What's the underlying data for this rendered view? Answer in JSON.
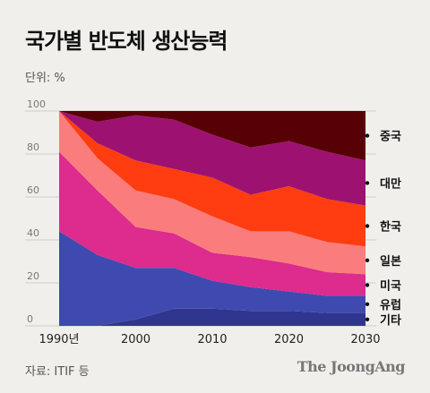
{
  "title": "국가별 반도체 생산능력",
  "unit": "단위: %",
  "source": "자료: ITIF 등",
  "brand": "The JoongAng",
  "chart_data": {
    "type": "area",
    "stacked": true,
    "title": "국가별 반도체 생산능력",
    "ylabel": "단위: %",
    "xlabel": "",
    "x": [
      1990,
      1995,
      2000,
      2005,
      2010,
      2015,
      2020,
      2025,
      2030
    ],
    "x_ticks": [
      1990,
      2000,
      2010,
      2020,
      2030
    ],
    "x_tick_labels": [
      "1990년",
      "2000",
      "2010",
      "2020",
      "2030"
    ],
    "ylim": [
      0,
      100
    ],
    "y_ticks": [
      0,
      20,
      40,
      60,
      80,
      100
    ],
    "grid": true,
    "legend": "right",
    "series": [
      {
        "name": "기타",
        "color": "#30368f",
        "values": [
          0,
          0,
          3,
          8,
          8,
          7,
          7,
          6,
          6
        ]
      },
      {
        "name": "유럽",
        "color": "#3f4ab0",
        "values": [
          44,
          33,
          24,
          19,
          13,
          11,
          9,
          8,
          8
        ]
      },
      {
        "name": "미국",
        "color": "#dd2b8e",
        "values": [
          37,
          30,
          19,
          16,
          13,
          14,
          13,
          11,
          10
        ]
      },
      {
        "name": "일본",
        "color": "#fb7c7c",
        "values": [
          19,
          15,
          17,
          16,
          17,
          12,
          15,
          14,
          13
        ]
      },
      {
        "name": "한국",
        "color": "#ff3d10",
        "values": [
          0,
          7,
          14,
          14,
          18,
          17,
          21,
          20,
          19
        ]
      },
      {
        "name": "대만",
        "color": "#9d1271",
        "values": [
          0,
          10,
          21,
          23,
          20,
          22,
          21,
          22,
          21
        ]
      },
      {
        "name": "중국",
        "color": "#570005",
        "values": [
          0,
          5,
          2,
          4,
          11,
          17,
          14,
          19,
          23
        ]
      }
    ]
  }
}
